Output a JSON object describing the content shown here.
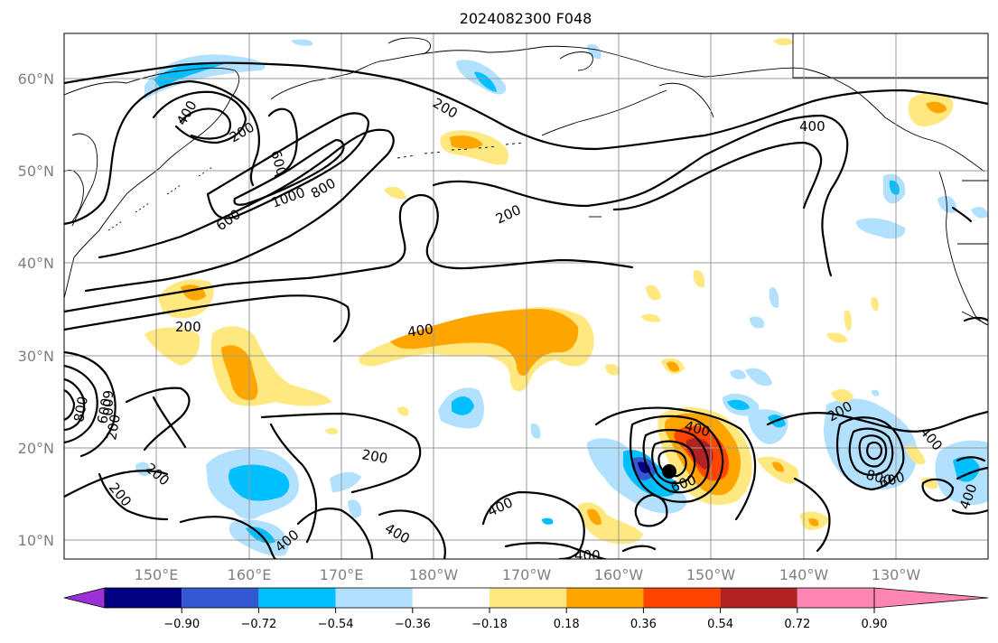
{
  "title": "2024082300 F048",
  "lat_labels": [
    "60°N",
    "50°N",
    "40°N",
    "30°N",
    "20°N",
    "10°N"
  ],
  "lon_labels": [
    "150°E",
    "160°E",
    "170°E",
    "180°W",
    "170°W",
    "160°W",
    "150°W",
    "140°W",
    "130°W"
  ],
  "colorbar": {
    "colors": [
      "#9b30d9",
      "#000080",
      "#3358d1",
      "#00bfff",
      "#b2e0ff",
      "#ffffff",
      "#ffe87f",
      "#ffa500",
      "#ff4500",
      "#b22222",
      "#ff85b3"
    ],
    "tick_labels": [
      "−0.90",
      "−0.72",
      "−0.54",
      "−0.36",
      "−0.18",
      "0.18",
      "0.36",
      "0.54",
      "0.72",
      "0.90"
    ]
  },
  "contour_labels": {
    "c1": "200",
    "c2": "400",
    "c3": "200",
    "c4": "600",
    "c5": "400",
    "c6": "1000",
    "c7": "800",
    "c8": "600",
    "c9": "200",
    "c10": "200",
    "c11": "400",
    "c12": "600",
    "c13": "800",
    "c14": "600",
    "c15": "200",
    "c16": "200",
    "c17": "200",
    "c18": "400",
    "c19": "400",
    "c20": "400",
    "c21": "400",
    "c22": "400",
    "c23": "600",
    "c24": "200",
    "c25": "400",
    "c26": "800",
    "c27": "600",
    "c28": "400",
    "c29": "400"
  }
}
